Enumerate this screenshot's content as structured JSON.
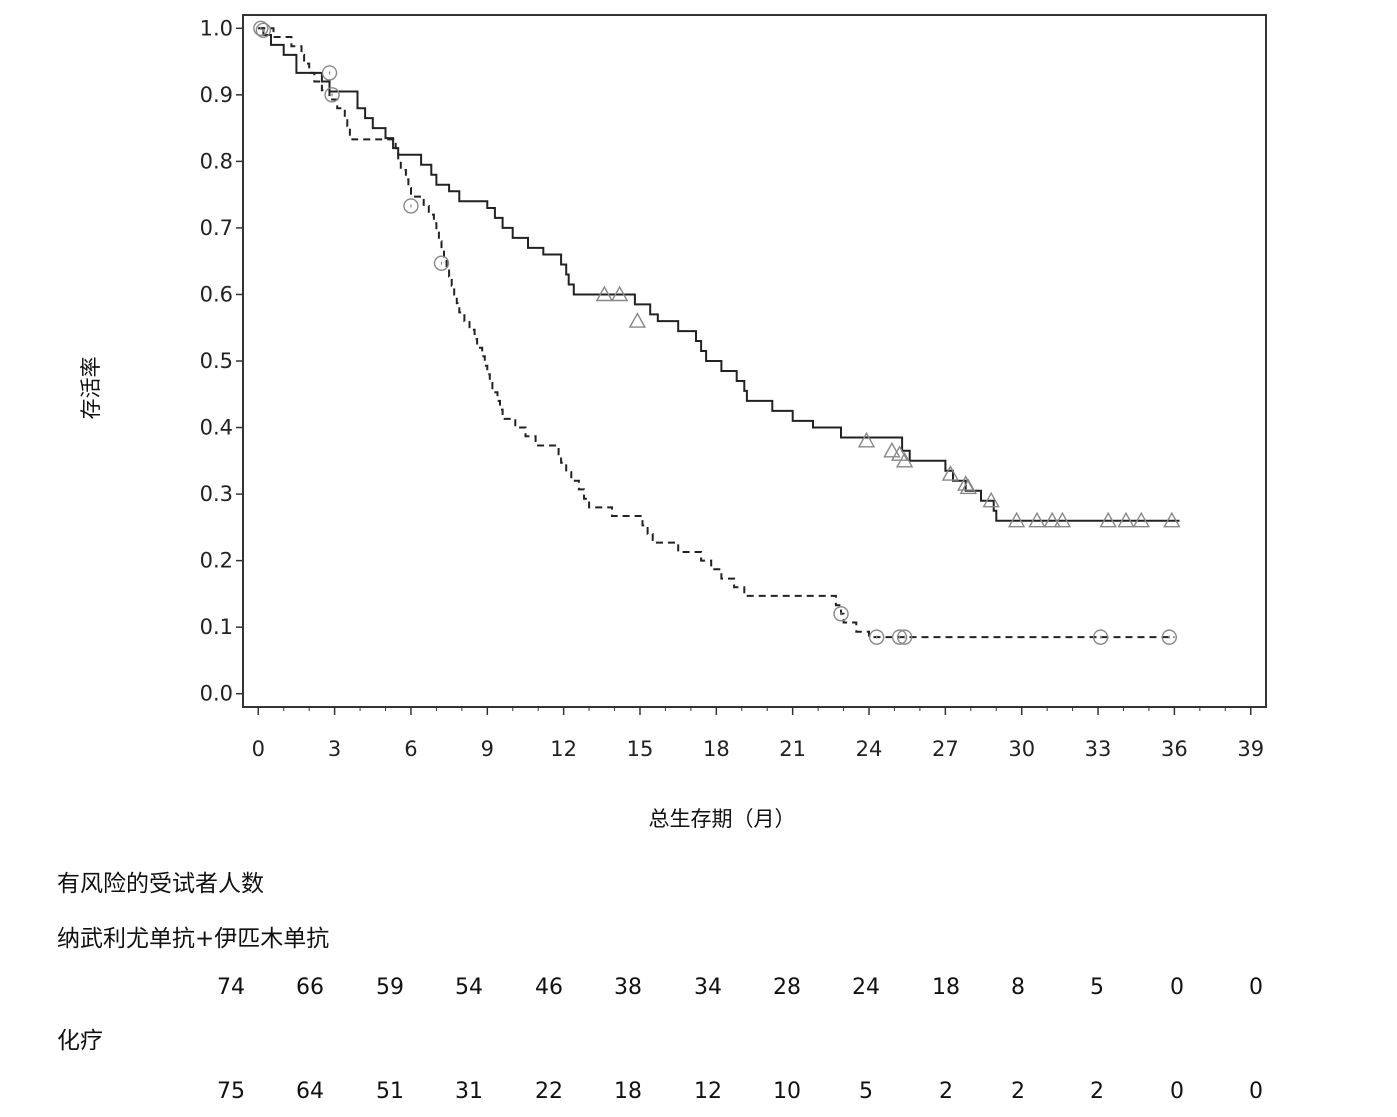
{
  "chart_data": {
    "type": "line",
    "xlabel": "总生存期（月）",
    "ylabel": "存活率",
    "xlim": [
      -0.6,
      39.6
    ],
    "ylim": [
      -0.02,
      1.02
    ],
    "x_ticks": [
      0,
      3,
      6,
      9,
      12,
      15,
      18,
      21,
      24,
      27,
      30,
      33,
      36,
      39
    ],
    "x_tick_labels": [
      "0",
      "3",
      "6",
      "9",
      "12",
      "15",
      "18",
      "21",
      "24",
      "27",
      "30",
      "33",
      "36",
      "39"
    ],
    "y_ticks": [
      0.0,
      0.1,
      0.2,
      0.3,
      0.4,
      0.5,
      0.6,
      0.7,
      0.8,
      0.9,
      1.0
    ],
    "y_tick_labels": [
      "0.0",
      "0.1",
      "0.2",
      "0.3",
      "0.4",
      "0.5",
      "0.6",
      "0.7",
      "0.8",
      "0.9",
      "1.0"
    ],
    "grid": false,
    "series": [
      {
        "name": "纳武利尤单抗+伊匹木单抗",
        "style": "solid",
        "color": "#222222",
        "censor_marker": "triangle",
        "steps": [
          [
            0,
            1.0
          ],
          [
            0.2,
            0.99
          ],
          [
            0.5,
            0.975
          ],
          [
            1.0,
            0.96
          ],
          [
            1.5,
            0.933
          ],
          [
            2.5,
            0.92
          ],
          [
            2.8,
            0.905
          ],
          [
            3.9,
            0.88
          ],
          [
            4.2,
            0.865
          ],
          [
            4.5,
            0.85
          ],
          [
            5.0,
            0.835
          ],
          [
            5.3,
            0.82
          ],
          [
            5.5,
            0.81
          ],
          [
            6.4,
            0.795
          ],
          [
            6.8,
            0.78
          ],
          [
            7.0,
            0.765
          ],
          [
            7.5,
            0.755
          ],
          [
            7.9,
            0.74
          ],
          [
            9.0,
            0.73
          ],
          [
            9.3,
            0.715
          ],
          [
            9.6,
            0.7
          ],
          [
            10.0,
            0.685
          ],
          [
            10.6,
            0.67
          ],
          [
            11.2,
            0.66
          ],
          [
            11.9,
            0.645
          ],
          [
            12.1,
            0.63
          ],
          [
            12.2,
            0.615
          ],
          [
            12.4,
            0.6
          ],
          [
            14.8,
            0.585
          ],
          [
            15.4,
            0.57
          ],
          [
            15.7,
            0.56
          ],
          [
            16.5,
            0.545
          ],
          [
            17.2,
            0.53
          ],
          [
            17.4,
            0.515
          ],
          [
            17.6,
            0.5
          ],
          [
            18.2,
            0.485
          ],
          [
            18.8,
            0.47
          ],
          [
            19.1,
            0.455
          ],
          [
            19.2,
            0.44
          ],
          [
            20.2,
            0.425
          ],
          [
            21.0,
            0.41
          ],
          [
            21.8,
            0.4
          ],
          [
            22.9,
            0.385
          ],
          [
            25.3,
            0.365
          ],
          [
            25.6,
            0.35
          ],
          [
            27.0,
            0.335
          ],
          [
            27.3,
            0.32
          ],
          [
            27.8,
            0.305
          ],
          [
            28.4,
            0.29
          ],
          [
            28.9,
            0.275
          ],
          [
            29.0,
            0.26
          ],
          [
            36.2,
            0.26
          ]
        ],
        "censored": [
          [
            13.6,
            0.6
          ],
          [
            14.2,
            0.6
          ],
          [
            14.9,
            0.56
          ],
          [
            23.9,
            0.38
          ],
          [
            24.9,
            0.365
          ],
          [
            25.2,
            0.36
          ],
          [
            25.4,
            0.35
          ],
          [
            27.2,
            0.33
          ],
          [
            27.8,
            0.315
          ],
          [
            27.9,
            0.31
          ],
          [
            28.8,
            0.29
          ],
          [
            29.8,
            0.26
          ],
          [
            30.6,
            0.26
          ],
          [
            31.2,
            0.26
          ],
          [
            31.6,
            0.26
          ],
          [
            33.4,
            0.26
          ],
          [
            34.1,
            0.26
          ],
          [
            34.7,
            0.26
          ],
          [
            35.9,
            0.26
          ]
        ]
      },
      {
        "name": "化疗",
        "style": "dashed",
        "color": "#222222",
        "censor_marker": "circle",
        "steps": [
          [
            0,
            1.0
          ],
          [
            0.6,
            0.987
          ],
          [
            1.3,
            0.973
          ],
          [
            1.7,
            0.96
          ],
          [
            1.8,
            0.947
          ],
          [
            2.0,
            0.933
          ],
          [
            2.2,
            0.92
          ],
          [
            2.5,
            0.907
          ],
          [
            2.8,
            0.893
          ],
          [
            3.1,
            0.88
          ],
          [
            3.4,
            0.867
          ],
          [
            3.5,
            0.853
          ],
          [
            3.6,
            0.84
          ],
          [
            3.7,
            0.833
          ],
          [
            5.4,
            0.82
          ],
          [
            5.5,
            0.8
          ],
          [
            5.6,
            0.787
          ],
          [
            5.8,
            0.773
          ],
          [
            5.9,
            0.76
          ],
          [
            6.0,
            0.747
          ],
          [
            6.5,
            0.733
          ],
          [
            6.7,
            0.72
          ],
          [
            6.9,
            0.707
          ],
          [
            7.0,
            0.693
          ],
          [
            7.1,
            0.68
          ],
          [
            7.2,
            0.667
          ],
          [
            7.3,
            0.653
          ],
          [
            7.4,
            0.64
          ],
          [
            7.5,
            0.627
          ],
          [
            7.6,
            0.613
          ],
          [
            7.7,
            0.6
          ],
          [
            7.8,
            0.587
          ],
          [
            7.9,
            0.573
          ],
          [
            8.1,
            0.56
          ],
          [
            8.3,
            0.547
          ],
          [
            8.5,
            0.533
          ],
          [
            8.6,
            0.52
          ],
          [
            8.8,
            0.507
          ],
          [
            8.9,
            0.493
          ],
          [
            9.0,
            0.48
          ],
          [
            9.1,
            0.467
          ],
          [
            9.2,
            0.453
          ],
          [
            9.4,
            0.44
          ],
          [
            9.5,
            0.427
          ],
          [
            9.6,
            0.413
          ],
          [
            10.1,
            0.4
          ],
          [
            10.5,
            0.387
          ],
          [
            10.9,
            0.373
          ],
          [
            11.8,
            0.36
          ],
          [
            11.9,
            0.347
          ],
          [
            12.1,
            0.333
          ],
          [
            12.3,
            0.32
          ],
          [
            12.6,
            0.307
          ],
          [
            12.8,
            0.293
          ],
          [
            13.0,
            0.28
          ],
          [
            13.9,
            0.267
          ],
          [
            15.1,
            0.253
          ],
          [
            15.3,
            0.24
          ],
          [
            15.5,
            0.227
          ],
          [
            16.5,
            0.213
          ],
          [
            17.4,
            0.2
          ],
          [
            17.8,
            0.187
          ],
          [
            18.2,
            0.173
          ],
          [
            18.7,
            0.16
          ],
          [
            19.1,
            0.147
          ],
          [
            22.7,
            0.133
          ],
          [
            22.9,
            0.12
          ],
          [
            23.0,
            0.107
          ],
          [
            23.5,
            0.093
          ],
          [
            24.0,
            0.085
          ],
          [
            36.0,
            0.085
          ]
        ],
        "censored": [
          [
            0.1,
            1.0
          ],
          [
            0.2,
            0.997
          ],
          [
            2.8,
            0.933
          ],
          [
            2.9,
            0.9
          ],
          [
            6.0,
            0.733
          ],
          [
            7.2,
            0.647
          ],
          [
            22.9,
            0.12
          ],
          [
            24.3,
            0.085
          ],
          [
            25.2,
            0.085
          ],
          [
            25.4,
            0.085
          ],
          [
            33.1,
            0.085
          ],
          [
            35.8,
            0.085
          ]
        ]
      }
    ]
  },
  "risk_table": {
    "title": "有风险的受试者人数",
    "groups": [
      {
        "name": "纳武利尤单抗+伊匹木单抗",
        "counts": [
          "74",
          "66",
          "59",
          "54",
          "46",
          "38",
          "34",
          "28",
          "24",
          "18",
          "8",
          "5",
          "0",
          "0"
        ]
      },
      {
        "name": "化疗",
        "counts": [
          "75",
          "64",
          "51",
          "31",
          "22",
          "18",
          "12",
          "10",
          "5",
          "2",
          "2",
          "2",
          "0",
          "0"
        ]
      }
    ]
  }
}
